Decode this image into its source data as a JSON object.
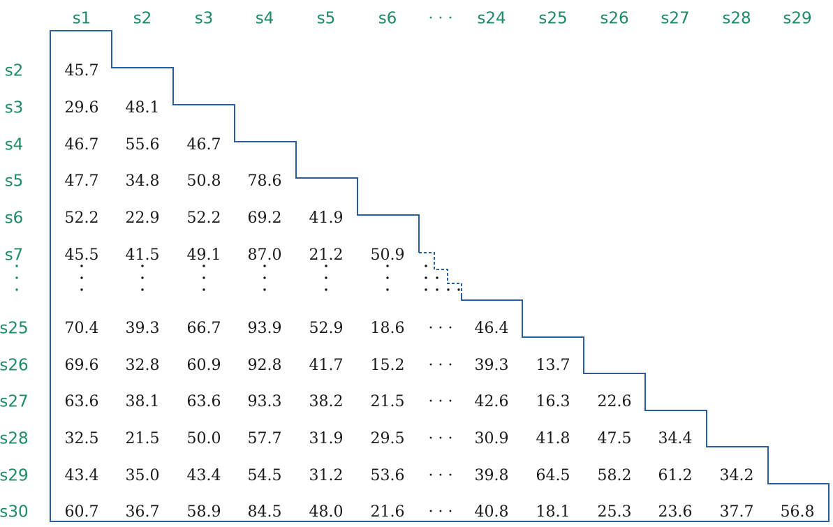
{
  "matrix": {
    "col_headers": [
      "s1",
      "s2",
      "s3",
      "s4",
      "s5",
      "s6",
      "· · ·",
      "s24",
      "s25",
      "s26",
      "s27",
      "s28",
      "s29"
    ],
    "row_headers": [
      "s2",
      "s3",
      "s4",
      "s5",
      "s6",
      "s7",
      "",
      "s25",
      "s26",
      "s27",
      "s28",
      "s29",
      "s30"
    ],
    "rows": [
      [
        "45.7"
      ],
      [
        "29.6",
        "48.1"
      ],
      [
        "46.7",
        "55.6",
        "46.7"
      ],
      [
        "47.7",
        "34.8",
        "50.8",
        "78.6"
      ],
      [
        "52.2",
        "22.9",
        "52.2",
        "69.2",
        "41.9"
      ],
      [
        "45.5",
        "41.5",
        "49.1",
        "87.0",
        "21.2",
        "50.9"
      ],
      [],
      [
        "70.4",
        "39.3",
        "66.7",
        "93.9",
        "52.9",
        "18.6",
        "· · ·",
        "46.4"
      ],
      [
        "69.6",
        "32.8",
        "60.9",
        "92.8",
        "41.7",
        "15.2",
        "· · ·",
        "39.3",
        "13.7"
      ],
      [
        "63.6",
        "38.1",
        "63.6",
        "93.3",
        "38.2",
        "21.5",
        "· · ·",
        "42.6",
        "16.3",
        "22.6"
      ],
      [
        "32.5",
        "21.5",
        "50.0",
        "57.7",
        "31.9",
        "29.5",
        "· · ·",
        "30.9",
        "41.8",
        "47.5",
        "34.4"
      ],
      [
        "43.4",
        "35.0",
        "43.4",
        "54.5",
        "31.2",
        "53.6",
        "· · ·",
        "39.8",
        "64.5",
        "58.2",
        "61.2",
        "34.2"
      ],
      [
        "60.7",
        "36.7",
        "58.9",
        "84.5",
        "48.0",
        "21.6",
        "· · ·",
        "40.8",
        "18.1",
        "25.3",
        "23.6",
        "37.7",
        "56.8"
      ]
    ]
  }
}
